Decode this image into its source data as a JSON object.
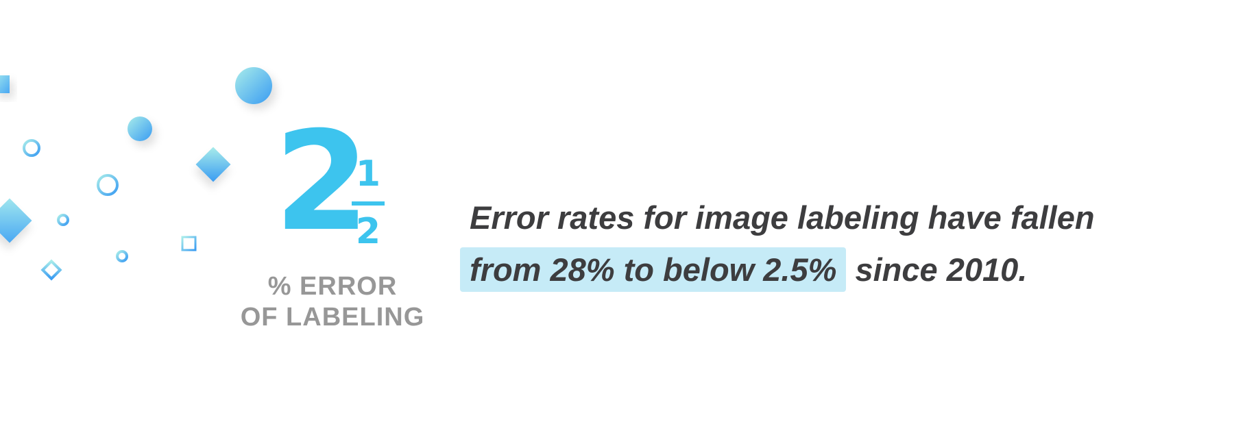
{
  "stat": {
    "whole": "2",
    "numerator": "1",
    "denominator": "2",
    "label_line1": "% ERROR",
    "label_line2": "OF LABELING"
  },
  "headline": {
    "line1": "Error rates for image labeling have fallen",
    "highlight": "from 28% to below 2.5%",
    "rest": " since 2010."
  },
  "colors": {
    "accent": "#3dc4ee",
    "highlight_bg": "#c6ebf7",
    "text_dark": "#3d3d3f",
    "label_gray": "#979797"
  },
  "decorations": [
    "square-shape",
    "circle-shape",
    "ring-shape",
    "diamond-shape",
    "outline-square-shape",
    "outline-diamond-shape"
  ]
}
